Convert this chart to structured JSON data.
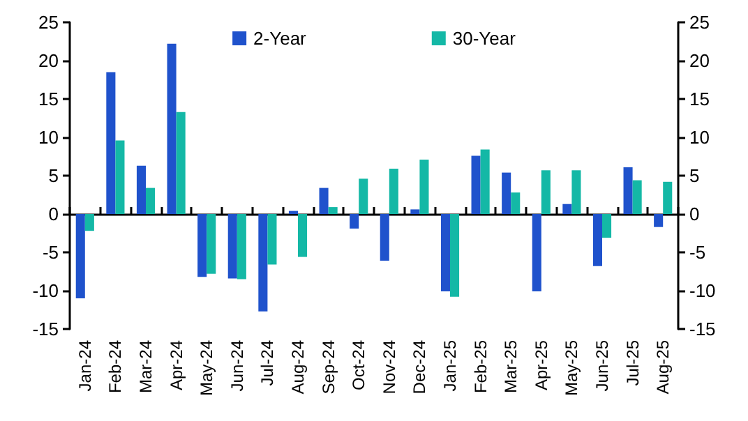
{
  "chart_data": {
    "type": "bar",
    "categories": [
      "Jan-24",
      "Feb-24",
      "Mar-24",
      "Apr-24",
      "May-24",
      "Jun-24",
      "Jul-24",
      "Aug-24",
      "Sep-24",
      "Oct-24",
      "Nov-24",
      "Dec-24",
      "Jan-25",
      "Feb-25",
      "Mar-25",
      "Apr-25",
      "May-25",
      "Jun-25",
      "Jul-25",
      "Aug-25"
    ],
    "series": [
      {
        "name": "2-Year",
        "color": "#1f52cc",
        "values": [
          -11,
          18.5,
          6.3,
          22.2,
          -8.2,
          -8.4,
          -12.7,
          0.4,
          3.4,
          -1.9,
          -6.1,
          0.6,
          -10.1,
          7.6,
          5.4,
          -10.1,
          1.3,
          -6.8,
          6.1,
          -1.7
        ]
      },
      {
        "name": "30-Year",
        "color": "#14b8a6",
        "values": [
          -2.2,
          9.6,
          3.4,
          13.3,
          -7.8,
          -8.5,
          -6.6,
          -5.6,
          0.9,
          4.6,
          5.9,
          7.1,
          -10.8,
          8.4,
          2.8,
          5.7,
          5.7,
          -3.1,
          4.4,
          4.2
        ]
      }
    ],
    "ylim": [
      -15,
      25
    ],
    "yticks": [
      -15,
      -10,
      -5,
      0,
      5,
      10,
      15,
      20,
      25
    ],
    "y2lim": [
      -15,
      25
    ],
    "y2ticks": [
      -15,
      -10,
      -5,
      0,
      5,
      10,
      15,
      20,
      25
    ],
    "legend": "top"
  }
}
